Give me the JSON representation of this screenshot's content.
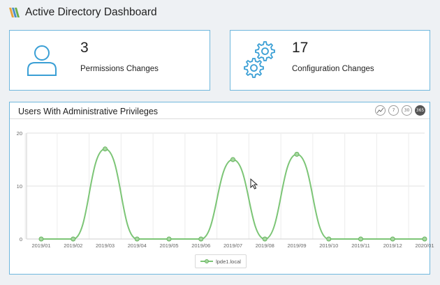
{
  "header": {
    "title": "Active Directory Dashboard"
  },
  "cards": [
    {
      "count": "3",
      "label": "Permissions Changes",
      "icon": "user-icon"
    },
    {
      "count": "17",
      "label": "Configuration Changes",
      "icon": "gears-icon"
    }
  ],
  "panel": {
    "title": "Users With Administrative Privileges",
    "tools": [
      {
        "icon": "chart-switch-icon",
        "text": ""
      },
      {
        "icon": "7-days-icon",
        "text": "7"
      },
      {
        "icon": "30-days-icon",
        "text": "30"
      },
      {
        "icon": "365-days-icon",
        "text": "365"
      }
    ],
    "legend": "lpde1.local"
  },
  "colors": {
    "accent": "#6fb7dd",
    "series_line": "#7cc576",
    "series_point": "#a5d79f"
  },
  "chart_data": {
    "type": "line",
    "categories": [
      "2019/01",
      "2019/02",
      "2019/03",
      "2019/04",
      "2019/05",
      "2019/06",
      "2019/07",
      "2019/08",
      "2019/09",
      "2019/10",
      "2019/11",
      "2019/12",
      "2020/01"
    ],
    "series": [
      {
        "name": "lpde1.local",
        "values": [
          0,
          0,
          17,
          0,
          0,
          0,
          15,
          0,
          16,
          0,
          0,
          0,
          0
        ]
      }
    ],
    "yticks": [
      0,
      10,
      20
    ],
    "ylim": [
      0,
      20
    ],
    "grid": true,
    "legend_position": "bottom"
  }
}
